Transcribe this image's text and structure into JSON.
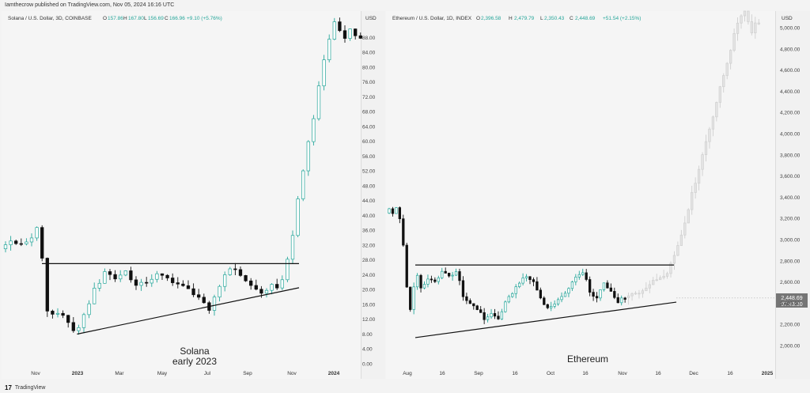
{
  "header": {
    "published": "Iamthecrow published on TradingView.com, Nov 05, 2024 16:16 UTC"
  },
  "footer": {
    "logo_mark": "17",
    "brand": "TradingView"
  },
  "colors": {
    "up": "#26a69a",
    "down": "#111111",
    "ghost": "#cfcfcf",
    "trend": "#111111",
    "accent_cyan": "#00bcd4"
  },
  "chart_data": [
    {
      "type": "candlestick",
      "symbol_line": "Solana / U.S. Dollar, 3D, COINBASE",
      "ohlc": {
        "o_label": "O",
        "o": "157.86",
        "h_label": "H",
        "h": "167.80",
        "l_label": "L",
        "l": "156.69",
        "c_label": "C",
        "c": "166.96",
        "change": "+9.10 (+5.76%)"
      },
      "currency": "USD",
      "annotation": [
        "Solana",
        "early 2023"
      ],
      "ylim": [
        0,
        90
      ],
      "y_ticks": [
        "0.00",
        "4.00",
        "8.00",
        "12.00",
        "16.00",
        "20.00",
        "24.00",
        "28.00",
        "32.00",
        "36.00",
        "40.00",
        "44.00",
        "48.00",
        "52.00",
        "56.00",
        "60.00",
        "64.00",
        "68.00",
        "72.00",
        "76.00",
        "80.00",
        "84.00",
        "88.00"
      ],
      "x_ticks": [
        "Nov",
        "2023",
        "Mar",
        "May",
        "Jul",
        "Sep",
        "Nov",
        "2024"
      ],
      "resistance": 27,
      "support": {
        "from": [
          14,
          8
        ],
        "to": [
          57,
          20.5
        ]
      },
      "price_anchors": [
        [
          0,
          31
        ],
        [
          2,
          33
        ],
        [
          4,
          32
        ],
        [
          6,
          34
        ],
        [
          7,
          37
        ],
        [
          8,
          28
        ],
        [
          9,
          14
        ],
        [
          10,
          13
        ],
        [
          12,
          13.5
        ],
        [
          14,
          8.5
        ],
        [
          15,
          10
        ],
        [
          16,
          13
        ],
        [
          18,
          20
        ],
        [
          19,
          22
        ],
        [
          20,
          25
        ],
        [
          22,
          23
        ],
        [
          24,
          25
        ],
        [
          26,
          21
        ],
        [
          28,
          22
        ],
        [
          30,
          24
        ],
        [
          32,
          23
        ],
        [
          34,
          21.5
        ],
        [
          36,
          20
        ],
        [
          38,
          18
        ],
        [
          40,
          14
        ],
        [
          41,
          18
        ],
        [
          43,
          24
        ],
        [
          44,
          26
        ],
        [
          46,
          24
        ],
        [
          48,
          21
        ],
        [
          50,
          19
        ],
        [
          52,
          21
        ],
        [
          53,
          20
        ],
        [
          54,
          23
        ],
        [
          55,
          28
        ],
        [
          56,
          35
        ],
        [
          57,
          44
        ],
        [
          58,
          52
        ],
        [
          59,
          60
        ],
        [
          60,
          66
        ],
        [
          61,
          75
        ],
        [
          62,
          82
        ],
        [
          63,
          88
        ],
        [
          64,
          92
        ],
        [
          65,
          90
        ],
        [
          66,
          88
        ],
        [
          67,
          90
        ],
        [
          68,
          88
        ]
      ]
    },
    {
      "type": "candlestick",
      "symbol_line": "Ethereum / U.S. Dollar, 1D, INDEX",
      "ohlc": {
        "o_label": "O",
        "o": "2,396.58",
        "h_label": "H",
        "h": "2,479.79",
        "l_label": "L",
        "l": "2,350.43",
        "c_label": "C",
        "c": "2,448.69",
        "change": "+51.54 (+2.15%)"
      },
      "currency": "USD",
      "annotation": [
        "Ethereum"
      ],
      "ylim": [
        1850,
        5200
      ],
      "y_ticks": [
        "2,000.00",
        "2,200.00",
        "2,400.00",
        "2,600.00",
        "2,800.00",
        "3,000.00",
        "3,200.00",
        "3,400.00",
        "3,600.00",
        "3,800.00",
        "4,000.00",
        "4,200.00",
        "4,400.00",
        "4,600.00",
        "4,800.00",
        "5,000.00"
      ],
      "x_ticks": [
        "Aug",
        "16",
        "Sep",
        "16",
        "Oct",
        "16",
        "Nov",
        "16",
        "Dec",
        "16",
        "2025"
      ],
      "last_price": "2,448.69",
      "countdown": "07:43:30",
      "resistance": 2760,
      "support": {
        "from": [
          5,
          2075
        ],
        "to": [
          81,
          2410
        ]
      },
      "real_anchors": [
        [
          0,
          3250
        ],
        [
          1,
          3300
        ],
        [
          2,
          3250
        ],
        [
          3,
          3300
        ],
        [
          4,
          3200
        ],
        [
          5,
          2950
        ],
        [
          6,
          2550
        ],
        [
          7,
          2350
        ],
        [
          8,
          2550
        ],
        [
          9,
          2650
        ],
        [
          10,
          2550
        ],
        [
          12,
          2620
        ],
        [
          14,
          2600
        ],
        [
          16,
          2700
        ],
        [
          18,
          2650
        ],
        [
          20,
          2700
        ],
        [
          21,
          2600
        ],
        [
          22,
          2450
        ],
        [
          24,
          2400
        ],
        [
          26,
          2350
        ],
        [
          28,
          2250
        ],
        [
          30,
          2300
        ],
        [
          32,
          2250
        ],
        [
          34,
          2400
        ],
        [
          36,
          2500
        ],
        [
          38,
          2600
        ],
        [
          40,
          2650
        ],
        [
          42,
          2600
        ],
        [
          44,
          2450
        ],
        [
          46,
          2350
        ],
        [
          48,
          2400
        ],
        [
          50,
          2450
        ],
        [
          52,
          2550
        ],
        [
          54,
          2650
        ],
        [
          56,
          2680
        ],
        [
          57,
          2620
        ],
        [
          58,
          2500
        ],
        [
          60,
          2450
        ],
        [
          62,
          2600
        ],
        [
          64,
          2500
        ],
        [
          66,
          2400
        ],
        [
          67,
          2440
        ]
      ],
      "projection_anchors": [
        [
          68,
          2450
        ],
        [
          70,
          2480
        ],
        [
          72,
          2500
        ],
        [
          74,
          2560
        ],
        [
          76,
          2600
        ],
        [
          78,
          2650
        ],
        [
          80,
          2700
        ],
        [
          82,
          2850
        ],
        [
          84,
          3050
        ],
        [
          86,
          3300
        ],
        [
          88,
          3550
        ],
        [
          90,
          3800
        ],
        [
          92,
          4050
        ],
        [
          94,
          4300
        ],
        [
          96,
          4550
        ],
        [
          98,
          4800
        ],
        [
          100,
          5050
        ],
        [
          102,
          5200
        ],
        [
          104,
          4950
        ],
        [
          105,
          5050
        ]
      ]
    }
  ]
}
